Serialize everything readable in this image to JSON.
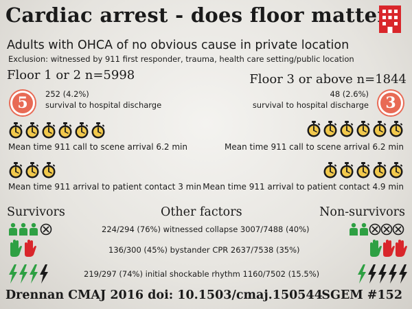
{
  "title": "Cardiac arrest - does floor matter?",
  "subtitle": "Adults with OHCA of no obvious cause in private location",
  "exclusion": "Exclusion: witnessed by 911 first responder, trauma, health care setting/public location",
  "low_floor": {
    "group_label": "Floor 1 or 2 n=5998",
    "badge": "5",
    "survival_count": "252 (4.2%)",
    "survival_label": "survival to hospital discharge",
    "scene_time_text": "Mean time 911 call to scene arrival 6.2 min",
    "scene_stopwatches": 6,
    "contact_time_text": "Mean time 911 arrival to patient contact 3 min",
    "contact_stopwatches": 3
  },
  "high_floor": {
    "group_label": "Floor 3 or above n=1844",
    "badge": "3",
    "survival_count": "48 (2.6%)",
    "survival_label": "survival to hospital discharge",
    "scene_time_text": "Mean time 911 call to scene arrival 6.2 min",
    "scene_stopwatches": 6,
    "contact_time_text": "Mean time 911 arrival to patient contact 4.9 min",
    "contact_stopwatches": 5
  },
  "factors": {
    "survivors_heading": "Survivors",
    "other_heading": "Other factors",
    "nonsurvivors_heading": "Non-survivors",
    "witnessed": "224/294 (76%) witnessed collapse 3007/7488 (40%)",
    "bystander_cpr": "136/300 (45%) bystander CPR 2637/7538 (35%)",
    "shockable": "219/297 (74%) initial shockable rhythm 1160/7502 (15.5%)"
  },
  "citation": "Drennan CMAJ 2016 doi: 10.1503/cmaj.150544",
  "tag": "SGEM #152",
  "colors": {
    "accent_red": "#d9262b",
    "badge_salmon": "#e86a55",
    "green": "#2ea043",
    "dark": "#1a1a1a"
  }
}
